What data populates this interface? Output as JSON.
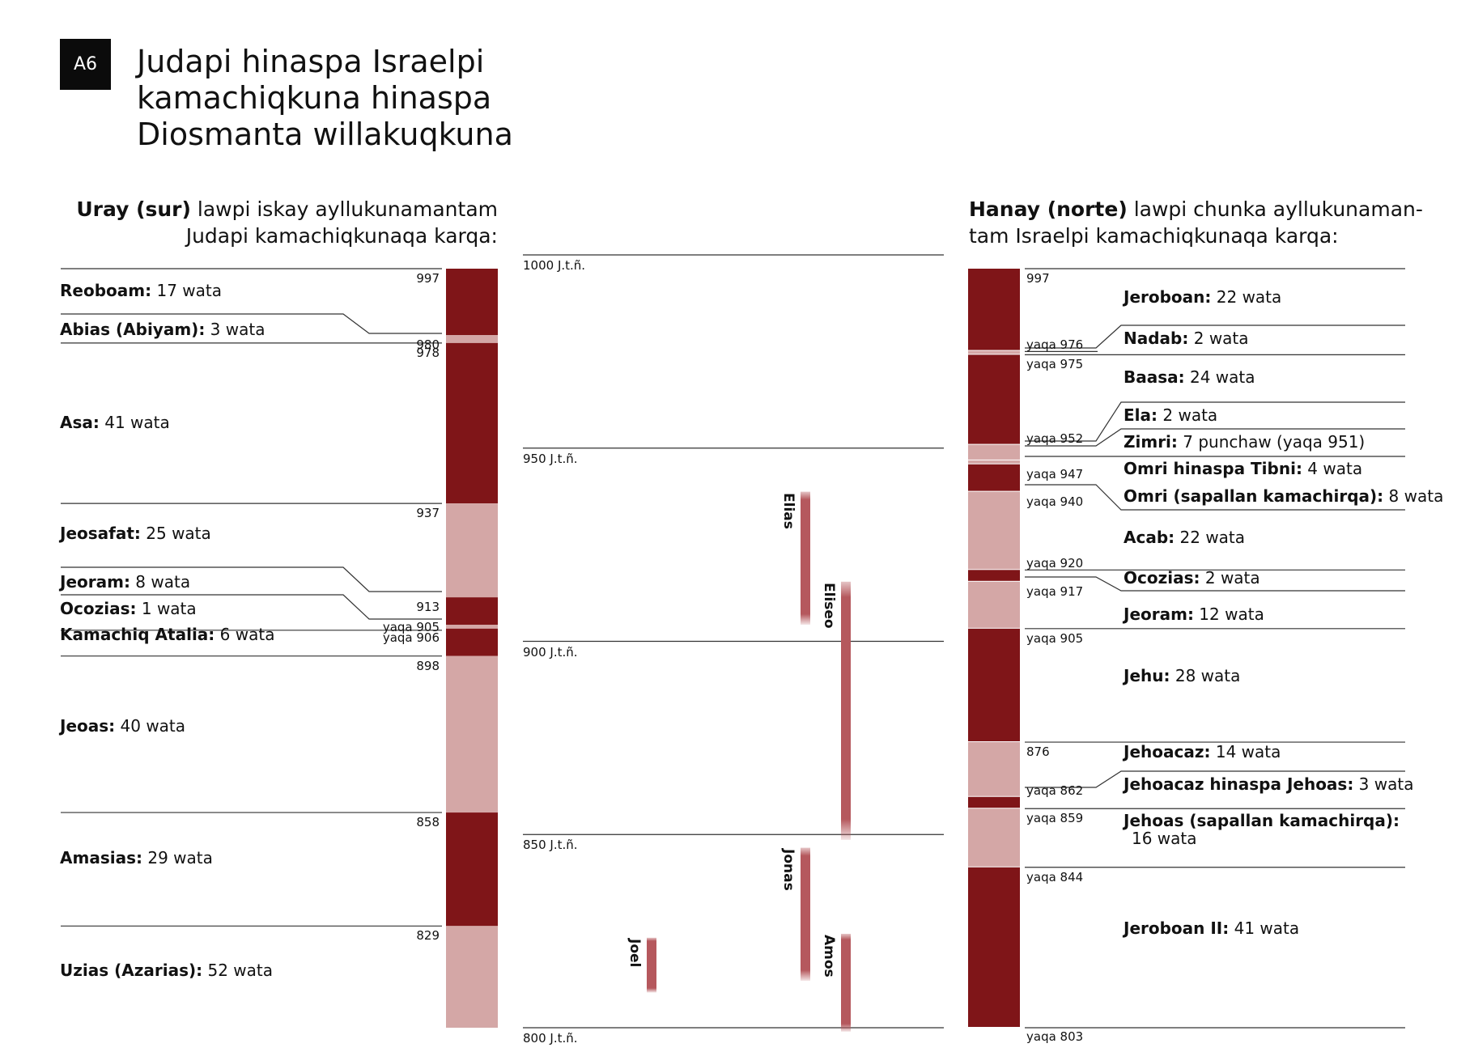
{
  "badge": "A6",
  "title_lines": [
    "Judapi hinaspa Israelpi",
    "kamachiqkuna hinaspa",
    "Diosmanta willakuqkuna"
  ],
  "judah_heading": {
    "bold": "Uray (sur)",
    "line1": " lawpi iskay ayllukunamantam",
    "line2": "Judapi kamachiqkunaqa karqa:"
  },
  "israel_heading": {
    "bold": "Hanay (norte)",
    "line1": " lawpi chunka ayllukunaman-",
    "line2": "tam Israelpi kamachiqkunaqa karqa:"
  },
  "colors": {
    "dark": "#7f1518",
    "light": "#d4a7a6",
    "prophet": "#b5585d",
    "line": "#333333"
  },
  "timeline_labels": [
    {
      "year": 1000,
      "text": "1000 J.t.ñ."
    },
    {
      "year": 950,
      "text": "950 J.t.ñ."
    },
    {
      "year": 900,
      "text": "900 J.t.ñ."
    },
    {
      "year": 850,
      "text": "850 J.t.ñ."
    },
    {
      "year": 800,
      "text": "800 J.t.ñ."
    }
  ],
  "judah_years": [
    {
      "year": 997,
      "text": "997"
    },
    {
      "year": 980,
      "text": "980"
    },
    {
      "year": 978,
      "text": "978"
    },
    {
      "year": 937,
      "text": "937"
    },
    {
      "year": 913,
      "text": "913"
    },
    {
      "year": 906,
      "text": "yaqa 906"
    },
    {
      "year": 905,
      "text": "yaqa 905"
    },
    {
      "year": 898,
      "text": "898"
    },
    {
      "year": 858,
      "text": "858"
    },
    {
      "year": 829,
      "text": "829"
    }
  ],
  "judah_kings": [
    {
      "name": "Reoboam:",
      "years": " 17 wata",
      "from": 997,
      "to": 980,
      "shade": "dark"
    },
    {
      "name": "Abias (Abiyam):",
      "years": " 3 wata",
      "from": 980,
      "to": 978,
      "shade": "light"
    },
    {
      "name": "Asa:",
      "years": " 41 wata",
      "from": 978,
      "to": 937,
      "shade": "dark"
    },
    {
      "name": "Jeosafat:",
      "years": " 25 wata",
      "from": 937,
      "to": 913,
      "shade": "light"
    },
    {
      "name": "Jeoram:",
      "years": " 8 wata",
      "from": 913,
      "to": 906,
      "shade": "dark"
    },
    {
      "name": "Ocozias:",
      "years": " 1 wata",
      "from": 906,
      "to": 905,
      "shade": "light"
    },
    {
      "name": "Kamachiq Atalia:",
      "years": " 6 wata",
      "from": 905,
      "to": 898,
      "shade": "dark"
    },
    {
      "name": "Jeoas:",
      "years": " 40 wata",
      "from": 898,
      "to": 858,
      "shade": "light"
    },
    {
      "name": "Amasias:",
      "years": " 29 wata",
      "from": 858,
      "to": 829,
      "shade": "dark"
    },
    {
      "name": "Uzias (Azarias):",
      "years": " 52 wata",
      "from": 829,
      "to": 803,
      "shade": "light"
    }
  ],
  "israel_years": [
    {
      "year": 997,
      "text": "997"
    },
    {
      "year": 976,
      "text": "yaqa 976"
    },
    {
      "year": 975,
      "text": "yaqa 975"
    },
    {
      "year": 952,
      "text": "yaqa 952"
    },
    {
      "year": 947,
      "text": "yaqa 947"
    },
    {
      "year": 940,
      "text": "yaqa 940"
    },
    {
      "year": 920,
      "text": "yaqa 920"
    },
    {
      "year": 917,
      "text": "yaqa 917"
    },
    {
      "year": 905,
      "text": "yaqa 905"
    },
    {
      "year": 876,
      "text": "876"
    },
    {
      "year": 862,
      "text": "yaqa 862"
    },
    {
      "year": 859,
      "text": "yaqa 859"
    },
    {
      "year": 844,
      "text": "yaqa 844"
    },
    {
      "year": 803,
      "text": "yaqa 803"
    }
  ],
  "israel_kings": [
    {
      "name": "Jeroboan:",
      "years": " 22 wata",
      "from": 997,
      "to": 976,
      "shade": "dark"
    },
    {
      "name": "Nadab:",
      "years": " 2 wata",
      "from": 976,
      "to": 975,
      "shade": "light"
    },
    {
      "name": "Baasa:",
      "years": " 24 wata",
      "from": 975,
      "to": 952,
      "shade": "dark"
    },
    {
      "name": "Ela:",
      "years": " 2 wata",
      "from": 952,
      "to": 951,
      "shade": "light"
    },
    {
      "name": "Zimri:",
      "years": " 7 punchaw (yaqa 951)",
      "from": 951,
      "to": 951,
      "shade": "dark"
    },
    {
      "name": "Omri hinaspa Tibni:",
      "years": " 4 wata",
      "from": 951,
      "to": 947,
      "shade": "light"
    },
    {
      "name": "Omri (sapallan kamachirqa):",
      "years": " 8 wata",
      "from": 947,
      "to": 940,
      "shade": "dark"
    },
    {
      "name": "Acab:",
      "years": " 22 wata",
      "from": 940,
      "to": 920,
      "shade": "light"
    },
    {
      "name": "Ocozias:",
      "years": " 2 wata",
      "from": 920,
      "to": 917,
      "shade": "dark"
    },
    {
      "name": "Jeoram:",
      "years": " 12 wata",
      "from": 917,
      "to": 905,
      "shade": "light"
    },
    {
      "name": "Jehu:",
      "years": " 28 wata",
      "from": 905,
      "to": 876,
      "shade": "dark"
    },
    {
      "name": "Jehoacaz:",
      "years": " 14 wata",
      "from": 876,
      "to": 862,
      "shade": "light"
    },
    {
      "name": "Jehoacaz hinaspa Jehoas:",
      "years": " 3 wata",
      "from": 862,
      "to": 859,
      "shade": "dark"
    },
    {
      "name": "Jehoas (sapallan kamachirqa):",
      "years": "16 wata",
      "from": 859,
      "to": 844,
      "shade": "light"
    },
    {
      "name": "Jeroboan II:",
      "years": " 41 wata",
      "from": 844,
      "to": 803,
      "shade": "dark"
    }
  ],
  "prophets": [
    {
      "name": "Elias",
      "from": 940,
      "to": 906
    },
    {
      "name": "Eliseo",
      "from": 917,
      "to": 851
    },
    {
      "name": "Jonas",
      "from": 849,
      "to": 815
    },
    {
      "name": "Amos",
      "from": 827,
      "to": 802
    },
    {
      "name": "Joel",
      "from": 826,
      "to": 812
    }
  ]
}
